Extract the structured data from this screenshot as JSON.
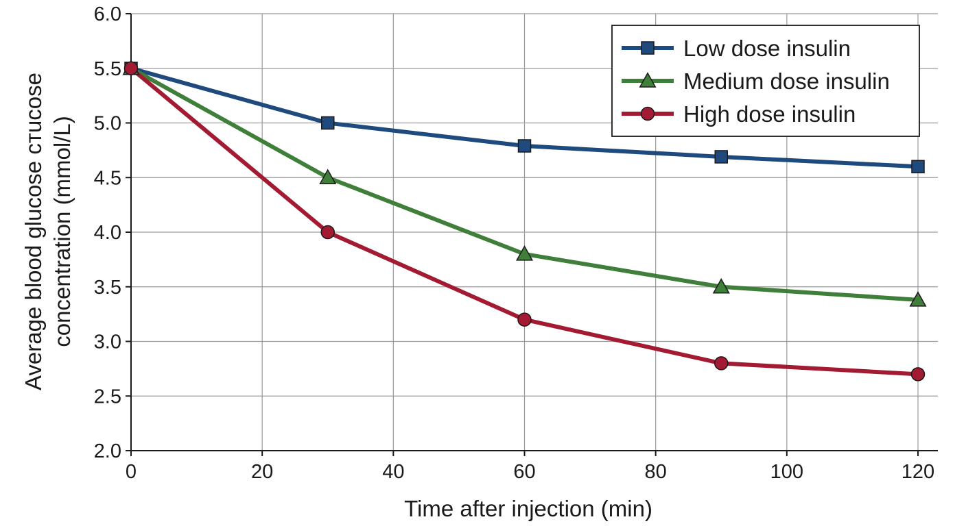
{
  "chart_data": {
    "type": "line",
    "title": "",
    "xlabel": "Time after injection (min)",
    "ylabel_lines": [
      "Average blood glucose cтucose",
      "concentration (mmol/L)"
    ],
    "xlim": [
      0,
      120
    ],
    "ylim": [
      2.0,
      6.0
    ],
    "x_ticks": [
      0,
      20,
      40,
      60,
      80,
      100,
      120
    ],
    "x_tick_labels": [
      "0",
      "20",
      "40",
      "60",
      "80",
      "100",
      "120"
    ],
    "y_ticks": [
      2.0,
      2.5,
      3.0,
      3.5,
      4.0,
      4.5,
      5.0,
      5.5,
      6.0
    ],
    "y_tick_labels": [
      "2.0",
      "2.5",
      "3.0",
      "3.5",
      "4.0",
      "4.5",
      "5.0",
      "5.5",
      "6.0"
    ],
    "grid": true,
    "legend_position": "top-right",
    "series": [
      {
        "name": "Low dose insulin",
        "marker": "square",
        "color": "#1f4a7d",
        "x": [
          0,
          30,
          60,
          90,
          120
        ],
        "y": [
          5.5,
          5.0,
          4.79,
          4.69,
          4.6
        ]
      },
      {
        "name": "Medium dose insulin",
        "marker": "triangle",
        "color": "#3f7f3a",
        "x": [
          0,
          30,
          60,
          90,
          120
        ],
        "y": [
          5.5,
          4.5,
          3.8,
          3.5,
          3.38
        ]
      },
      {
        "name": "High dose insulin",
        "marker": "circle",
        "color": "#a31b32",
        "x": [
          0,
          30,
          60,
          90,
          120
        ],
        "y": [
          5.5,
          4.0,
          3.2,
          2.8,
          2.7
        ]
      }
    ]
  }
}
